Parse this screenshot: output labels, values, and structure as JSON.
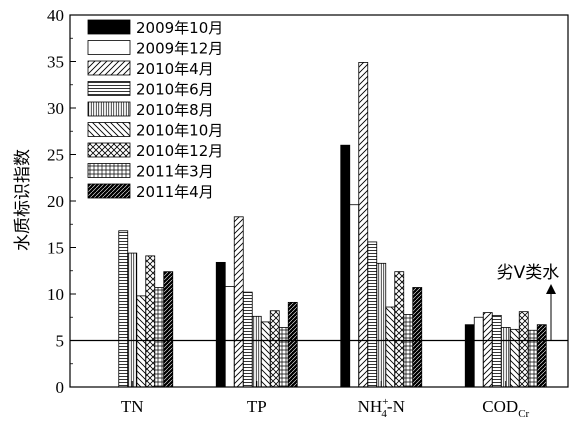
{
  "chart_data": {
    "type": "bar",
    "title": "",
    "xlabel": "",
    "ylabel": "水质标识指数",
    "ylim": [
      0,
      40
    ],
    "yticks": [
      0,
      5,
      10,
      15,
      20,
      25,
      30,
      35,
      40
    ],
    "categories": [
      {
        "main": "TN",
        "sup": "",
        "sub": ""
      },
      {
        "main": "TP",
        "sup": "",
        "sub": ""
      },
      {
        "main": "NH4+-N",
        "display_base": "NH",
        "sup": "+",
        "sub": "4",
        "tail": "-N"
      },
      {
        "main": "COD",
        "sup": "",
        "sub": "Cr"
      }
    ],
    "series": [
      {
        "name": "2009年10月",
        "pattern": "solid",
        "values": [
          null,
          13.4,
          26.0,
          6.7
        ]
      },
      {
        "name": "2009年12月",
        "pattern": "empty",
        "values": [
          null,
          10.8,
          19.6,
          7.5
        ]
      },
      {
        "name": "2010年4月",
        "pattern": "diagR",
        "values": [
          null,
          18.3,
          34.9,
          8.0
        ]
      },
      {
        "name": "2010年6月",
        "pattern": "hlines",
        "values": [
          16.8,
          10.2,
          15.6,
          7.7
        ]
      },
      {
        "name": "2010年8月",
        "pattern": "vlines",
        "values": [
          14.4,
          7.6,
          13.3,
          6.4
        ]
      },
      {
        "name": "2010年10月",
        "pattern": "diagL",
        "values": [
          9.8,
          7.0,
          8.6,
          6.2
        ]
      },
      {
        "name": "2010年12月",
        "pattern": "cross",
        "values": [
          14.1,
          8.2,
          12.4,
          8.1
        ]
      },
      {
        "name": "2011年3月",
        "pattern": "grid",
        "values": [
          10.7,
          6.4,
          7.8,
          6.1
        ]
      },
      {
        "name": "2011年4月",
        "pattern": "darkdiag",
        "values": [
          12.4,
          9.1,
          10.7,
          6.7
        ]
      }
    ],
    "reference_line": {
      "value": 5,
      "label": "劣Ⅴ类水"
    },
    "legend_position": "top-left",
    "grid": false
  }
}
